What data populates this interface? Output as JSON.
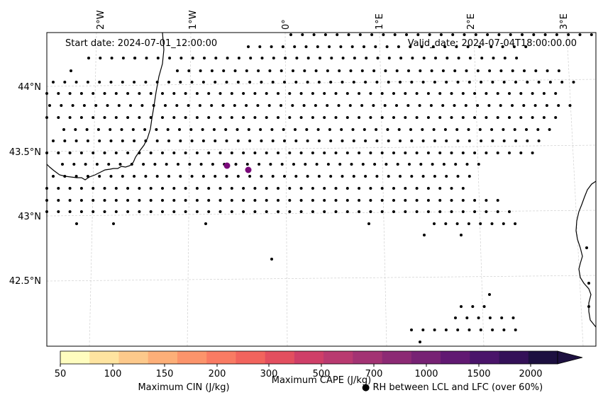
{
  "header": {
    "start_date": "Start date: 2024-07-01_12:00:00",
    "valid_date": "Valid_date: 2024-07-04T18:00:00.00"
  },
  "map": {
    "lon_labels": [
      "2°W",
      "1°W",
      "0°",
      "1°E",
      "2°E",
      "3°E"
    ],
    "lat_labels": [
      "44°N",
      "43.5°N",
      "43°N",
      "42.5°N"
    ],
    "coastline_color": "#000000",
    "gridline_color": "#d0d0d0",
    "marker_color": "#000000",
    "highlight_marker_color": "#7a0a7a"
  },
  "colorbar": {
    "tick_labels": [
      "50",
      "100",
      "150",
      "200",
      "300",
      "500",
      "700",
      "1000",
      "1500",
      "2000"
    ],
    "colors": [
      "#fffdbf",
      "#fee4a0",
      "#fdc98b",
      "#fdaf78",
      "#fc946b",
      "#f97b63",
      "#f2645d",
      "#e34f5f",
      "#cf3f68",
      "#b93a70",
      "#a33373",
      "#8c2a74",
      "#772274",
      "#611972",
      "#4a146a",
      "#341158",
      "#1d1040"
    ],
    "extend": "max"
  },
  "legend": {
    "cape_label": "Maximum CAPE (J/kg)",
    "cin_label": "Maximum CIN (J/kg)",
    "cin_color": "#ff0000",
    "rh_label": "● RH between LCL and LFC (over 60%)"
  }
}
